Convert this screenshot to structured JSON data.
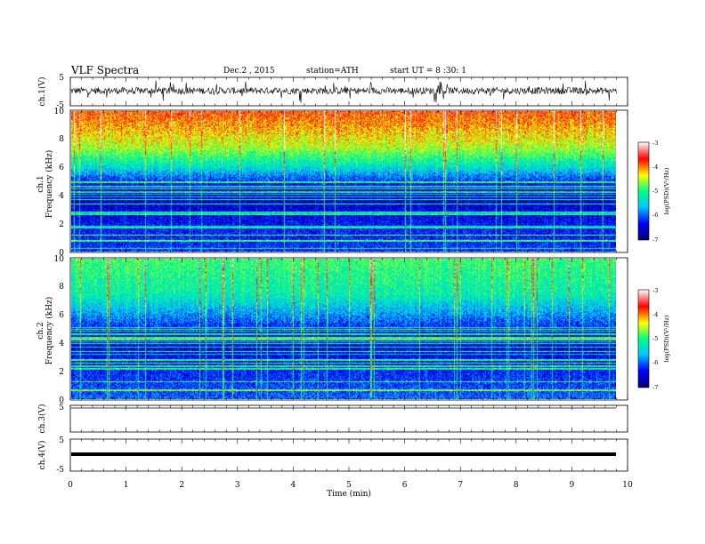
{
  "header": {
    "title": "VLF  Spectra",
    "date": "Dec.2  , 2015",
    "station": "station=ATH",
    "start": "start  UT  =   8 :30: 1"
  },
  "chart_data": [
    {
      "id": "ch1-waveform",
      "type": "line",
      "ylabel": "ch.1(V)",
      "ylim": [
        -5,
        5
      ],
      "yticks": [
        "5",
        "-5"
      ],
      "x_range_min": [
        0,
        9.8
      ],
      "baseline": 0.3,
      "amplitude_typical": 1.2,
      "amplitude_spike_max": 4
    },
    {
      "id": "ch1-spectrogram",
      "type": "heatmap",
      "ylabel_channel": "ch.1",
      "ylabel": "Frequency  (kHz)",
      "ylim": [
        0,
        10
      ],
      "yticks": [
        "0",
        "2",
        "4",
        "6",
        "8",
        "10"
      ],
      "x_range_min": [
        0,
        9.8
      ],
      "colorbar_label": "log(PSD)(V²/Hz)",
      "colorbar_range": [
        -7,
        -3
      ],
      "colorbar_ticks": [
        "-3",
        "-4",
        "-5",
        "-6",
        "-7"
      ],
      "level_profile_khz": [
        0,
        1.5,
        3,
        4.5,
        6,
        7.5,
        10
      ],
      "level_profile_logpsd": [
        -6.2,
        -6.3,
        -6.5,
        -6.6,
        -5.4,
        -4.5,
        -3.8
      ]
    },
    {
      "id": "ch2-spectrogram",
      "type": "heatmap",
      "ylabel_channel": "ch.2",
      "ylabel": "Frequency  (kHz)",
      "ylim": [
        0,
        10
      ],
      "yticks": [
        "0",
        "2",
        "4",
        "6",
        "8",
        "10"
      ],
      "x_range_min": [
        0,
        9.8
      ],
      "colorbar_label": "log(PSD)(V²/Hz)",
      "colorbar_range": [
        -7,
        -3
      ],
      "colorbar_ticks": [
        "-3",
        "-4",
        "-5",
        "-6",
        "-7"
      ],
      "level_profile_khz": [
        0,
        1.5,
        3,
        4.5,
        6,
        7.5,
        10
      ],
      "level_profile_logpsd": [
        -6.0,
        -6.2,
        -6.4,
        -6.5,
        -5.8,
        -5.2,
        -4.9
      ]
    },
    {
      "id": "ch3-waveform",
      "type": "line",
      "ylabel": "ch.3(V)",
      "ylim": [
        -5,
        5
      ],
      "yticks": [
        "5"
      ],
      "x_range_min": [
        0,
        9.8
      ],
      "baseline": -5,
      "amplitude_typical": 0
    },
    {
      "id": "ch4-waveform",
      "type": "line",
      "ylabel": "ch.4(V)",
      "ylim": [
        -5,
        5
      ],
      "yticks": [
        "5",
        "-5"
      ],
      "x_range_min": [
        0,
        9.8
      ],
      "baseline": 0.3,
      "amplitude_typical": 0.3
    }
  ],
  "xaxis": {
    "label": "Time  (min)",
    "range": [
      0,
      10
    ],
    "ticks": [
      "0",
      "1",
      "2",
      "3",
      "4",
      "5",
      "6",
      "7",
      "8",
      "9",
      "10"
    ]
  },
  "colors": {
    "colormap": [
      "#000070",
      "#0000ff",
      "#00c8ff",
      "#00ff80",
      "#ffff00",
      "#ff0000",
      "#ffffff"
    ],
    "line": "#000000"
  }
}
